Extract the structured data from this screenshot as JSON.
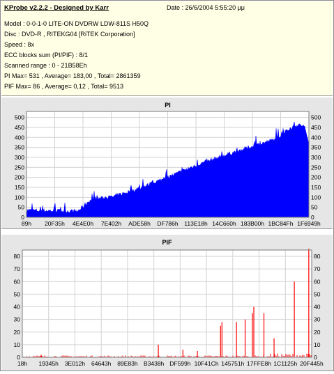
{
  "info": {
    "title": "KProbe v2.2.2 - Designed by Karr",
    "date": "Date : 26/6/2004 5:55:20 μμ",
    "lines": [
      "Model : 0-0-1-0 LITE-ON DVDRW LDW-811S   H50Q",
      "Disc : DVD-R , RITEKG04 [RiTEK Corporation]",
      "Speed : 8x",
      "ECC blocks sum (PI/PIF) : 8/1",
      "Scanned range : 0 - 21B58Eh",
      "PI Max= 531 , Average= 183,00 , Total= 2861359",
      "PIF Max= 86 , Average= 0,12 , Total= 9513"
    ]
  },
  "colors": {
    "info_bg": "#ffffe6",
    "panel_bg": "#e6e6e6",
    "pi_fill": "#0000ff",
    "pif_fill": "#ff0000",
    "plot_bg": "#ffffff"
  },
  "chart_data": [
    {
      "type": "area",
      "title": "PI",
      "ylim": [
        0,
        530
      ],
      "yticks": [
        0,
        50,
        100,
        150,
        200,
        250,
        300,
        350,
        400,
        450,
        500
      ],
      "xtick_labels": [
        "89h",
        "20F35h",
        "4E4E0h",
        "7E402h",
        "ADE58h",
        "DF786h",
        "113E18h",
        "14C660h",
        "183B00h",
        "1BC84Fh",
        "1F6949h"
      ],
      "grid": true,
      "profile": {
        "x": [
          0,
          0.18,
          0.19,
          0.22,
          0.26,
          0.3,
          0.4,
          0.5,
          0.6,
          0.7,
          0.8,
          0.88,
          0.92,
          0.95,
          0.98,
          1.0
        ],
        "y": [
          35,
          30,
          40,
          80,
          95,
          100,
          145,
          200,
          260,
          310,
          355,
          390,
          430,
          460,
          460,
          380
        ]
      },
      "max": 531
    },
    {
      "type": "bar",
      "title": "PIF",
      "ylim": [
        0,
        85
      ],
      "yticks": [
        0,
        10,
        20,
        30,
        40,
        50,
        60,
        70,
        80
      ],
      "xtick_labels": [
        "18h",
        "19345h",
        "3E012h",
        "64643h",
        "89E83h",
        "B3438h",
        "DF599h",
        "10F41Ch",
        "145751h",
        "17FFE8h",
        "1C1125h",
        "20F445h"
      ],
      "grid": true,
      "spikes": {
        "x": [
          0.065,
          0.47,
          0.555,
          0.605,
          0.685,
          0.69,
          0.74,
          0.77,
          0.795,
          0.8,
          0.835,
          0.87,
          0.94,
          0.99
        ],
        "y": [
          2,
          10,
          6,
          5,
          25,
          28,
          28,
          30,
          35,
          40,
          35,
          15,
          60,
          86
        ]
      },
      "baseline": 1,
      "max": 86
    }
  ]
}
